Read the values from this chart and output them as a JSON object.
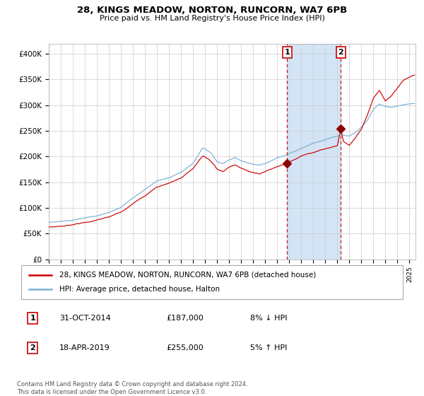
{
  "title": "28, KINGS MEADOW, NORTON, RUNCORN, WA7 6PB",
  "subtitle": "Price paid vs. HM Land Registry's House Price Index (HPI)",
  "legend_entry1": "28, KINGS MEADOW, NORTON, RUNCORN, WA7 6PB (detached house)",
  "legend_entry2": "HPI: Average price, detached house, Halton",
  "annotation1_label": "1",
  "annotation1_date": "31-OCT-2014",
  "annotation1_price": "£187,000",
  "annotation1_hpi": "8% ↓ HPI",
  "annotation1_year": 2014.83,
  "annotation1_value": 187000,
  "annotation2_label": "2",
  "annotation2_date": "18-APR-2019",
  "annotation2_price": "£255,000",
  "annotation2_hpi": "5% ↑ HPI",
  "annotation2_year": 2019.29,
  "annotation2_value": 255000,
  "shade_color": "#cce0f5",
  "line1_color": "#cc0000",
  "line2_color": "#7bafd4",
  "marker_color": "#8b0000",
  "dashed_line_color": "#cc0000",
  "grid_color": "#cccccc",
  "bg_color": "#ffffff",
  "ylim_min": 0,
  "ylim_max": 420000,
  "yticks": [
    0,
    50000,
    100000,
    150000,
    200000,
    250000,
    300000,
    350000,
    400000
  ],
  "ytick_labels": [
    "£0",
    "£50K",
    "£100K",
    "£150K",
    "£200K",
    "£250K",
    "£300K",
    "£350K",
    "£400K"
  ],
  "footnote": "Contains HM Land Registry data © Crown copyright and database right 2024.\nThis data is licensed under the Open Government Licence v3.0.",
  "start_year": 1995.0,
  "end_year": 2025.5
}
